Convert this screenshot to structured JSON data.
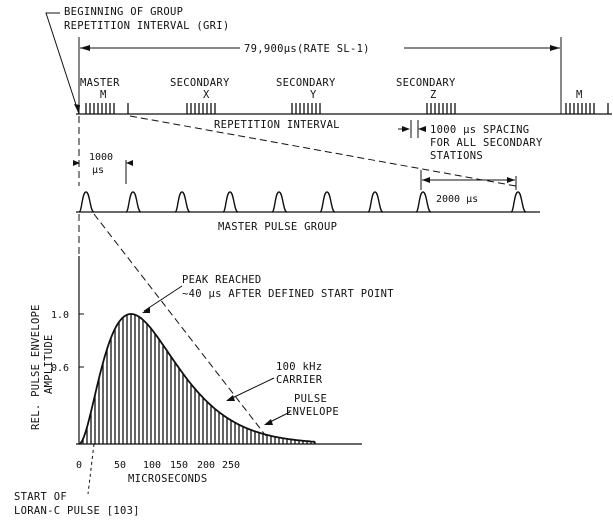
{
  "labels": {
    "gri_line1": "BEGINNING OF GROUP",
    "gri_line2": "REPETITION INTERVAL (GRI)",
    "interval_value": "79,900μs(RATE SL-1)",
    "master_line1": "MASTER",
    "master_line2": "M",
    "secondary_x_line1": "SECONDARY",
    "secondary_x_line2": "X",
    "secondary_y_line1": "SECONDARY",
    "secondary_y_line2": "Y",
    "secondary_z_line1": "SECONDARY",
    "secondary_z_line2": "Z",
    "next_master": "M",
    "repetition_interval": "REPETITION INTERVAL",
    "spacing_line1": "1000 μs SPACING",
    "spacing_line2": "FOR ALL SECONDARY",
    "spacing_line3": "STATIONS",
    "pulse_gap_value": "1000",
    "pulse_gap_unit": "μs",
    "gap_2000": "2000 μs",
    "master_pulse_group": "MASTER PULSE GROUP",
    "peak_line1": "PEAK REACHED",
    "peak_line2": "~40 μs AFTER DEFINED START POINT",
    "carrier_line1": "100 kHz",
    "carrier_line2": "CARRIER",
    "envelope_line1": "PULSE",
    "envelope_line2": "ENVELOPE",
    "start_line1": "START OF",
    "start_line2": "LORAN-C PULSE [103]"
  },
  "chart_data": {
    "type": "line",
    "xlabel": "MICROSECONDS",
    "ylabel_line1": "REL. PULSE ENVELOPE",
    "ylabel_line2": "AMPLITUDE",
    "x_ticks": [
      "0",
      "50",
      "100",
      "150",
      "200",
      "250"
    ],
    "y_ticks": [
      "1.0",
      "0.6"
    ],
    "xlim": [
      0,
      300
    ],
    "ylim": [
      0,
      1.0
    ],
    "envelope_peak_us": 65,
    "carrier_khz": 100
  }
}
